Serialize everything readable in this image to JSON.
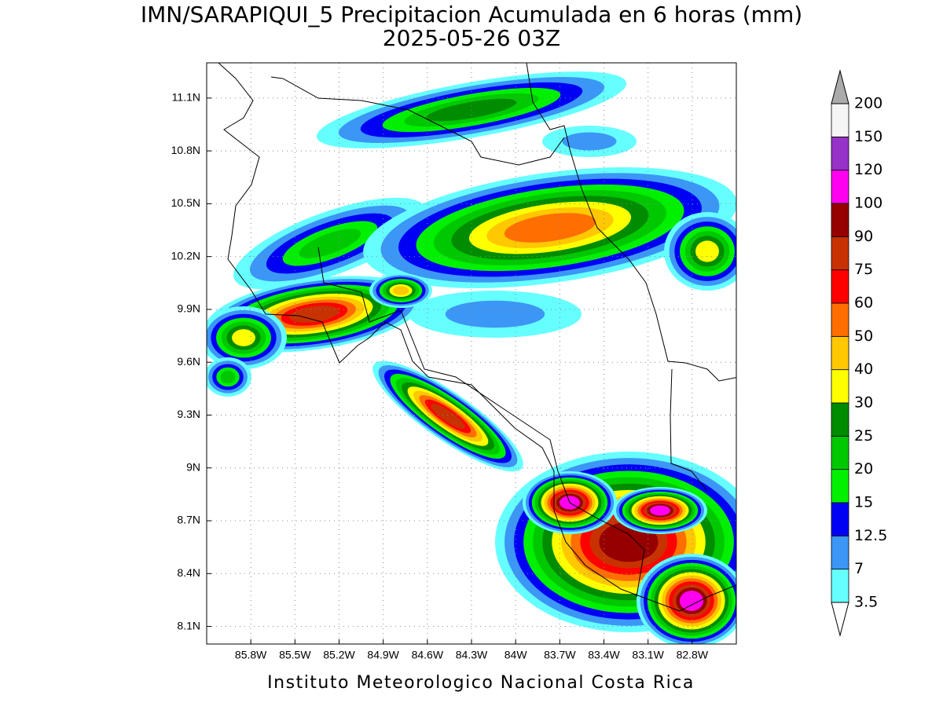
{
  "title": "IMN/SARAPIQUI_5 Precipitacion Acumulada en 6 horas (mm)",
  "subtitle": "2025-05-26 03Z",
  "footer": "Instituto Meteorologico Nacional Costa Rica",
  "map": {
    "xlim": [
      -86.1,
      -82.5
    ],
    "ylim": [
      8.0,
      11.3
    ],
    "grid": true,
    "xticks": [
      {
        "value": -85.8,
        "label": "85.8W"
      },
      {
        "value": -85.5,
        "label": "85.5W"
      },
      {
        "value": -85.2,
        "label": "85.2W"
      },
      {
        "value": -84.9,
        "label": "84.9W"
      },
      {
        "value": -84.6,
        "label": "84.6W"
      },
      {
        "value": -84.3,
        "label": "84.3W"
      },
      {
        "value": -84.0,
        "label": "84W"
      },
      {
        "value": -83.7,
        "label": "83.7W"
      },
      {
        "value": -83.4,
        "label": "83.4W"
      },
      {
        "value": -83.1,
        "label": "83.1W"
      },
      {
        "value": -82.8,
        "label": "82.8W"
      }
    ],
    "yticks": [
      {
        "value": 8.1,
        "label": "8.1N"
      },
      {
        "value": 8.4,
        "label": "8.4N"
      },
      {
        "value": 8.7,
        "label": "8.7N"
      },
      {
        "value": 9.0,
        "label": "9N"
      },
      {
        "value": 9.3,
        "label": "9.3N"
      },
      {
        "value": 9.6,
        "label": "9.6N"
      },
      {
        "value": 9.9,
        "label": "9.9N"
      },
      {
        "value": 10.2,
        "label": "10.2N"
      },
      {
        "value": 10.5,
        "label": "10.5N"
      },
      {
        "value": 10.8,
        "label": "10.8N"
      },
      {
        "value": 11.1,
        "label": "11.1N"
      }
    ]
  },
  "colorbar": {
    "levels": [
      3.5,
      7,
      12.5,
      15,
      20,
      25,
      30,
      40,
      50,
      60,
      75,
      90,
      100,
      120,
      150,
      200
    ],
    "colors": [
      "#66ffff",
      "#3c96f5",
      "#0000f5",
      "#00f000",
      "#00c800",
      "#008c00",
      "#ffff00",
      "#ffc800",
      "#ff6e00",
      "#ff0000",
      "#c83200",
      "#960000",
      "#ff00f0",
      "#9632c8",
      "#f5f5f5"
    ],
    "under_color": "#ffffff",
    "over_color": "#aaaaaa"
  }
}
